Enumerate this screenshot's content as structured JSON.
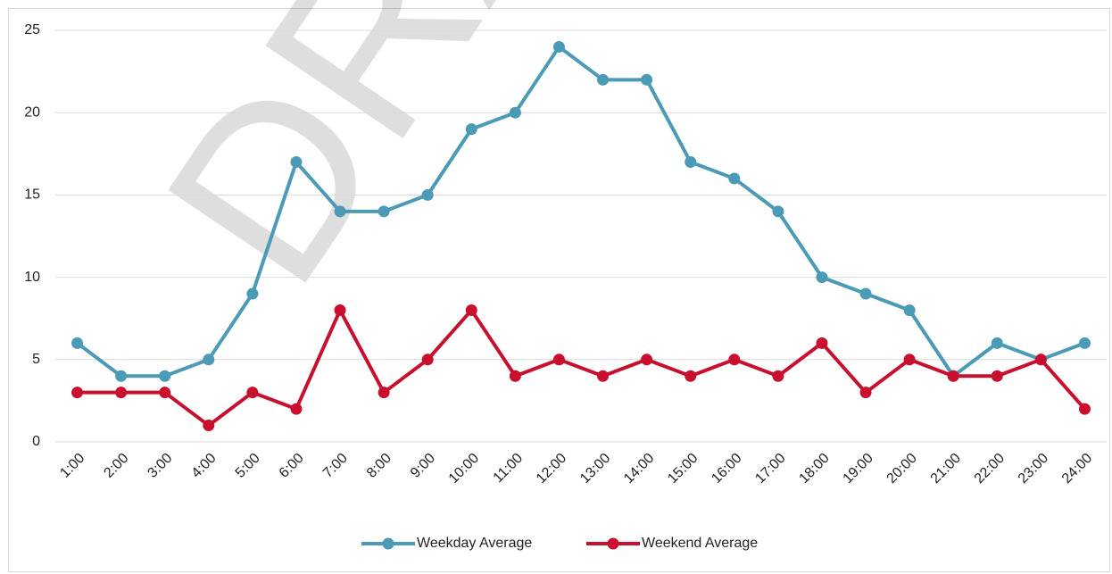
{
  "chart_data": {
    "type": "line",
    "watermark": "DRAFT",
    "categories": [
      "1:00",
      "2:00",
      "3:00",
      "4:00",
      "5:00",
      "6:00",
      "7:00",
      "8:00",
      "9:00",
      "10:00",
      "11:00",
      "12:00",
      "13:00",
      "14:00",
      "15:00",
      "16:00",
      "17:00",
      "18:00",
      "19:00",
      "20:00",
      "21:00",
      "22:00",
      "23:00",
      "24:00"
    ],
    "series": [
      {
        "name": "Weekday Average",
        "color": "#4b9ab6",
        "values": [
          6,
          4,
          4,
          5,
          9,
          17,
          14,
          14,
          15,
          19,
          20,
          24,
          22,
          22,
          17,
          16,
          14,
          10,
          9,
          8,
          4,
          6,
          5,
          6
        ]
      },
      {
        "name": "Weekend Average",
        "color": "#c8102e",
        "values": [
          3,
          3,
          3,
          1,
          3,
          2,
          8,
          3,
          5,
          8,
          4,
          5,
          4,
          5,
          4,
          5,
          4,
          6,
          3,
          5,
          4,
          4,
          5,
          2
        ]
      }
    ],
    "ylim": [
      0,
      25
    ],
    "yticks": [
      0,
      5,
      10,
      15,
      20,
      25
    ],
    "grid": true,
    "legend": "bottom"
  }
}
